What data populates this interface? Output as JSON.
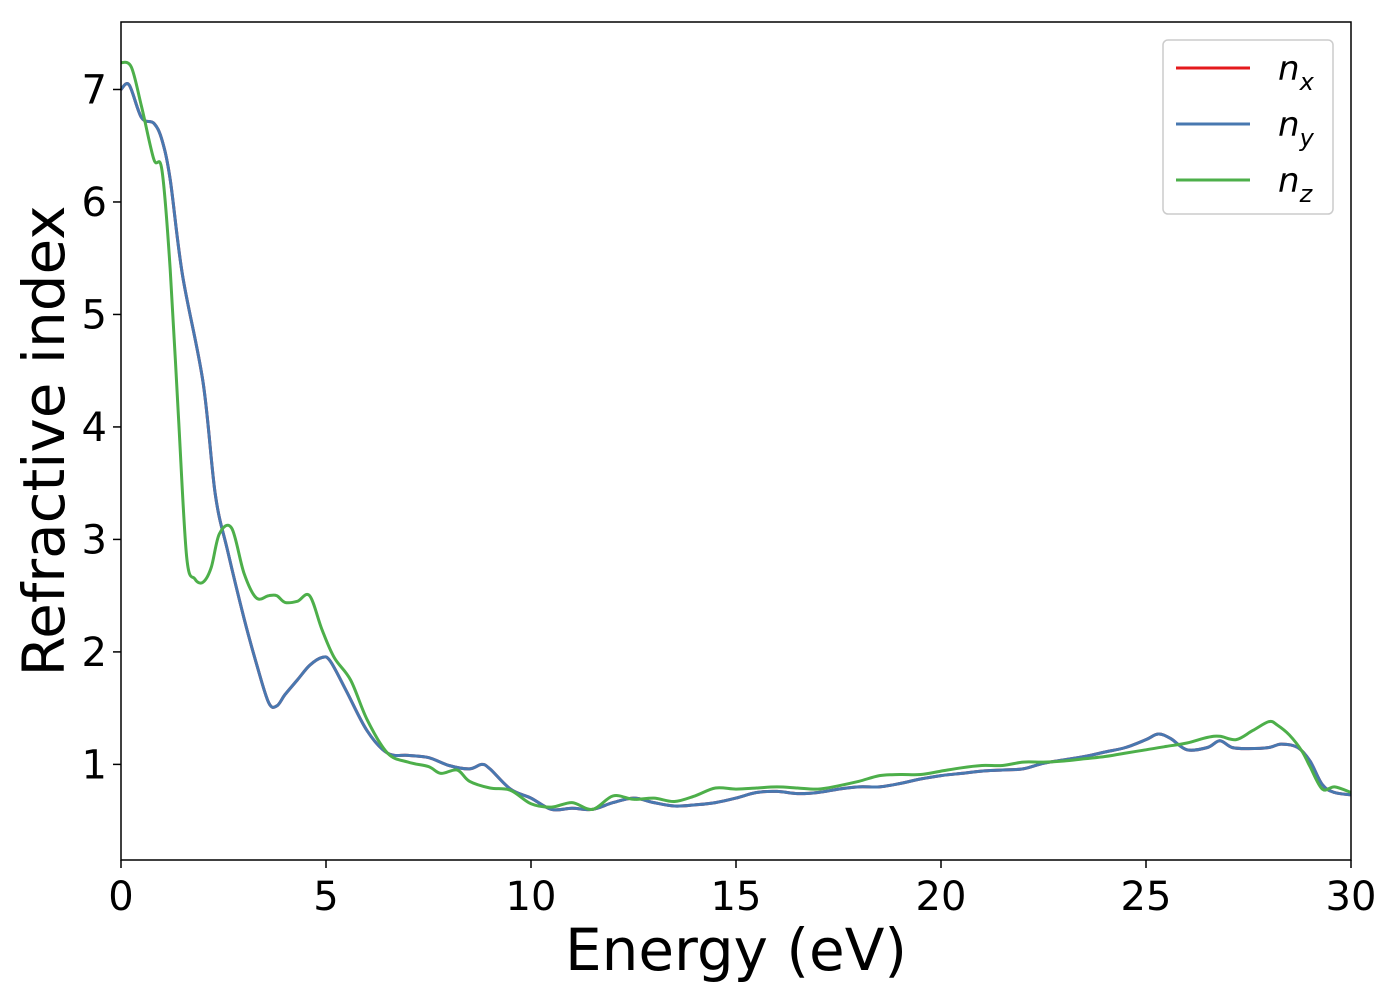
{
  "chart_data": {
    "type": "line",
    "xlabel": "Energy (eV)",
    "ylabel": "Refractive index",
    "xlim": [
      0,
      30
    ],
    "ylim": [
      0.15,
      7.6
    ],
    "xticks": [
      0,
      5,
      10,
      15,
      20,
      25,
      30
    ],
    "yticks": [
      1,
      2,
      3,
      4,
      5,
      6,
      7
    ],
    "grid": false,
    "legend_position": "top-right",
    "series": [
      {
        "name": "n_x",
        "label_base": "n",
        "label_sub": "x",
        "color": "#e41a1c",
        "x": [
          0,
          0.2,
          0.5,
          0.8,
          1.0,
          1.2,
          1.5,
          2.0,
          2.3,
          2.6,
          3.0,
          3.3,
          3.6,
          3.8,
          4.0,
          4.3,
          4.6,
          4.9,
          5.1,
          5.5,
          6.0,
          6.5,
          7.0,
          7.5,
          8.0,
          8.5,
          8.8,
          9.0,
          9.5,
          10.0,
          10.5,
          11.0,
          11.5,
          12.0,
          12.5,
          13.0,
          13.5,
          14.0,
          14.5,
          15.0,
          15.5,
          16.0,
          16.5,
          17.0,
          17.5,
          18.0,
          18.5,
          19.0,
          19.5,
          20.0,
          20.5,
          21.0,
          21.5,
          22.0,
          22.5,
          23.0,
          23.5,
          24.0,
          24.5,
          25.0,
          25.3,
          25.6,
          26.0,
          26.5,
          26.8,
          27.1,
          27.5,
          28.0,
          28.3,
          28.7,
          29.0,
          29.3,
          29.6,
          30.0
        ],
        "y": [
          7.0,
          7.04,
          6.75,
          6.7,
          6.55,
          6.2,
          5.35,
          4.4,
          3.4,
          2.9,
          2.3,
          1.9,
          1.55,
          1.52,
          1.62,
          1.75,
          1.88,
          1.95,
          1.92,
          1.65,
          1.3,
          1.1,
          1.08,
          1.06,
          0.99,
          0.96,
          1.0,
          0.96,
          0.78,
          0.7,
          0.6,
          0.61,
          0.6,
          0.66,
          0.7,
          0.66,
          0.63,
          0.64,
          0.66,
          0.7,
          0.75,
          0.76,
          0.74,
          0.75,
          0.78,
          0.8,
          0.8,
          0.83,
          0.87,
          0.9,
          0.92,
          0.94,
          0.95,
          0.96,
          1.01,
          1.04,
          1.07,
          1.11,
          1.15,
          1.22,
          1.27,
          1.23,
          1.13,
          1.15,
          1.21,
          1.15,
          1.14,
          1.15,
          1.18,
          1.15,
          1.03,
          0.82,
          0.75,
          0.73
        ]
      },
      {
        "name": "n_y",
        "label_base": "n",
        "label_sub": "y",
        "color": "#4878b0",
        "x": [
          0,
          0.2,
          0.5,
          0.8,
          1.0,
          1.2,
          1.5,
          2.0,
          2.3,
          2.6,
          3.0,
          3.3,
          3.6,
          3.8,
          4.0,
          4.3,
          4.6,
          4.9,
          5.1,
          5.5,
          6.0,
          6.5,
          7.0,
          7.5,
          8.0,
          8.5,
          8.8,
          9.0,
          9.5,
          10.0,
          10.5,
          11.0,
          11.5,
          12.0,
          12.5,
          13.0,
          13.5,
          14.0,
          14.5,
          15.0,
          15.5,
          16.0,
          16.5,
          17.0,
          17.5,
          18.0,
          18.5,
          19.0,
          19.5,
          20.0,
          20.5,
          21.0,
          21.5,
          22.0,
          22.5,
          23.0,
          23.5,
          24.0,
          24.5,
          25.0,
          25.3,
          25.6,
          26.0,
          26.5,
          26.8,
          27.1,
          27.5,
          28.0,
          28.3,
          28.7,
          29.0,
          29.3,
          29.6,
          30.0
        ],
        "y": [
          7.0,
          7.04,
          6.75,
          6.7,
          6.55,
          6.2,
          5.35,
          4.4,
          3.4,
          2.9,
          2.3,
          1.9,
          1.55,
          1.52,
          1.62,
          1.75,
          1.88,
          1.95,
          1.92,
          1.65,
          1.3,
          1.1,
          1.08,
          1.06,
          0.99,
          0.96,
          1.0,
          0.96,
          0.78,
          0.7,
          0.6,
          0.61,
          0.6,
          0.66,
          0.7,
          0.66,
          0.63,
          0.64,
          0.66,
          0.7,
          0.75,
          0.76,
          0.74,
          0.75,
          0.78,
          0.8,
          0.8,
          0.83,
          0.87,
          0.9,
          0.92,
          0.94,
          0.95,
          0.96,
          1.01,
          1.04,
          1.07,
          1.11,
          1.15,
          1.22,
          1.27,
          1.23,
          1.13,
          1.15,
          1.21,
          1.15,
          1.14,
          1.15,
          1.18,
          1.15,
          1.03,
          0.82,
          0.75,
          0.73
        ]
      },
      {
        "name": "n_z",
        "label_base": "n",
        "label_sub": "z",
        "color": "#4daf4a",
        "x": [
          0,
          0.25,
          0.5,
          0.8,
          1.0,
          1.2,
          1.4,
          1.6,
          1.8,
          2.0,
          2.2,
          2.4,
          2.7,
          3.0,
          3.3,
          3.6,
          3.8,
          4.0,
          4.3,
          4.6,
          4.9,
          5.2,
          5.6,
          6.0,
          6.5,
          7.0,
          7.5,
          7.8,
          8.2,
          8.5,
          9.0,
          9.5,
          10.0,
          10.5,
          11.0,
          11.5,
          12.0,
          12.5,
          13.0,
          13.5,
          14.0,
          14.5,
          15.0,
          15.5,
          16.0,
          16.5,
          17.0,
          17.5,
          18.0,
          18.5,
          19.0,
          19.5,
          20.0,
          20.5,
          21.0,
          21.5,
          22.0,
          22.5,
          23.0,
          23.5,
          24.0,
          24.5,
          25.0,
          25.5,
          26.0,
          26.5,
          26.8,
          27.2,
          27.6,
          28.0,
          28.2,
          28.5,
          28.8,
          29.0,
          29.3,
          29.6,
          30.0
        ],
        "y": [
          7.24,
          7.2,
          6.85,
          6.38,
          6.28,
          5.4,
          4.1,
          2.85,
          2.65,
          2.62,
          2.75,
          3.05,
          3.1,
          2.7,
          2.48,
          2.5,
          2.5,
          2.44,
          2.45,
          2.5,
          2.2,
          1.95,
          1.75,
          1.4,
          1.1,
          1.02,
          0.98,
          0.92,
          0.95,
          0.85,
          0.79,
          0.77,
          0.65,
          0.62,
          0.66,
          0.6,
          0.72,
          0.69,
          0.7,
          0.67,
          0.72,
          0.79,
          0.78,
          0.79,
          0.8,
          0.79,
          0.78,
          0.81,
          0.85,
          0.9,
          0.91,
          0.91,
          0.94,
          0.97,
          0.99,
          0.99,
          1.02,
          1.02,
          1.03,
          1.05,
          1.07,
          1.1,
          1.13,
          1.16,
          1.19,
          1.24,
          1.25,
          1.22,
          1.3,
          1.38,
          1.35,
          1.26,
          1.12,
          0.98,
          0.78,
          0.8,
          0.75
        ]
      }
    ]
  }
}
